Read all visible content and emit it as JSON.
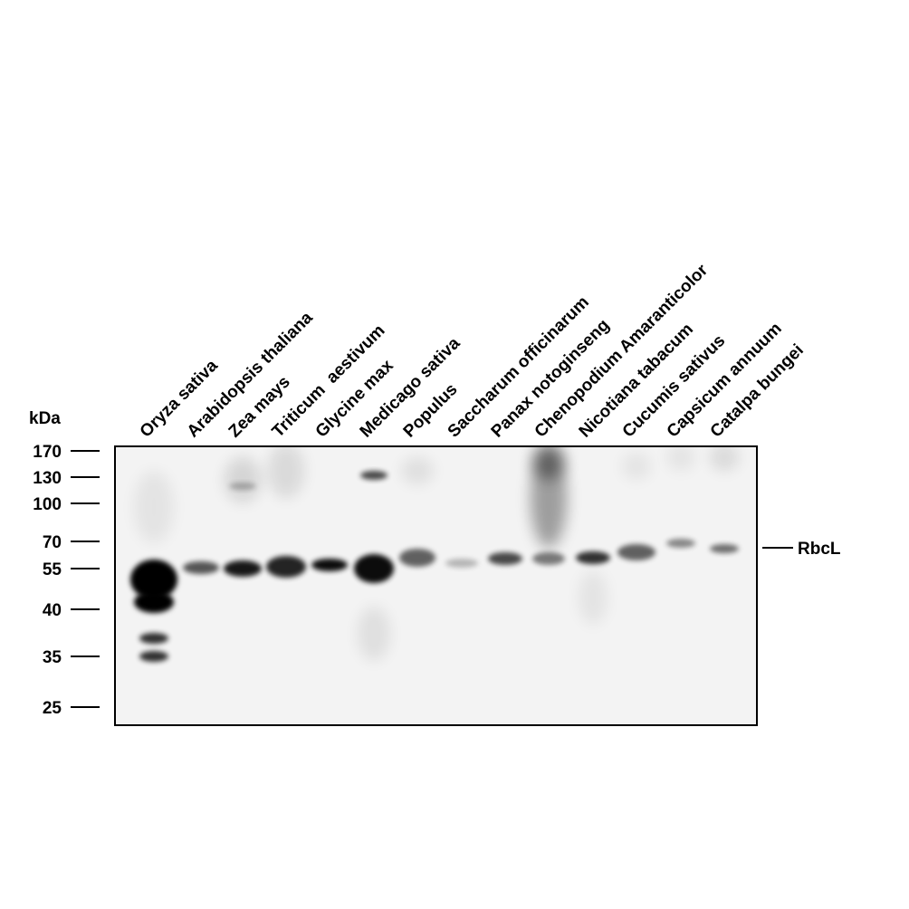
{
  "figure": {
    "unit_label": "kDa",
    "markers": [
      "170",
      "130",
      "100",
      "70",
      "55",
      "40",
      "35",
      "25"
    ],
    "lanes": [
      "Oryza sativa",
      "Arabidopsis thaliana",
      "Zea mays",
      "Triticum  aestivum",
      "Glycine max",
      "Medicago sativa",
      "Populus",
      "Saccharum officinarum",
      "Panax notoginseng",
      "Chenopodium Amaranticolor",
      "Nicotiana tabacum",
      "Cucumis sativus",
      "Capsicum annuum",
      "Catalpa bungei"
    ],
    "band_label": "RbcL"
  }
}
